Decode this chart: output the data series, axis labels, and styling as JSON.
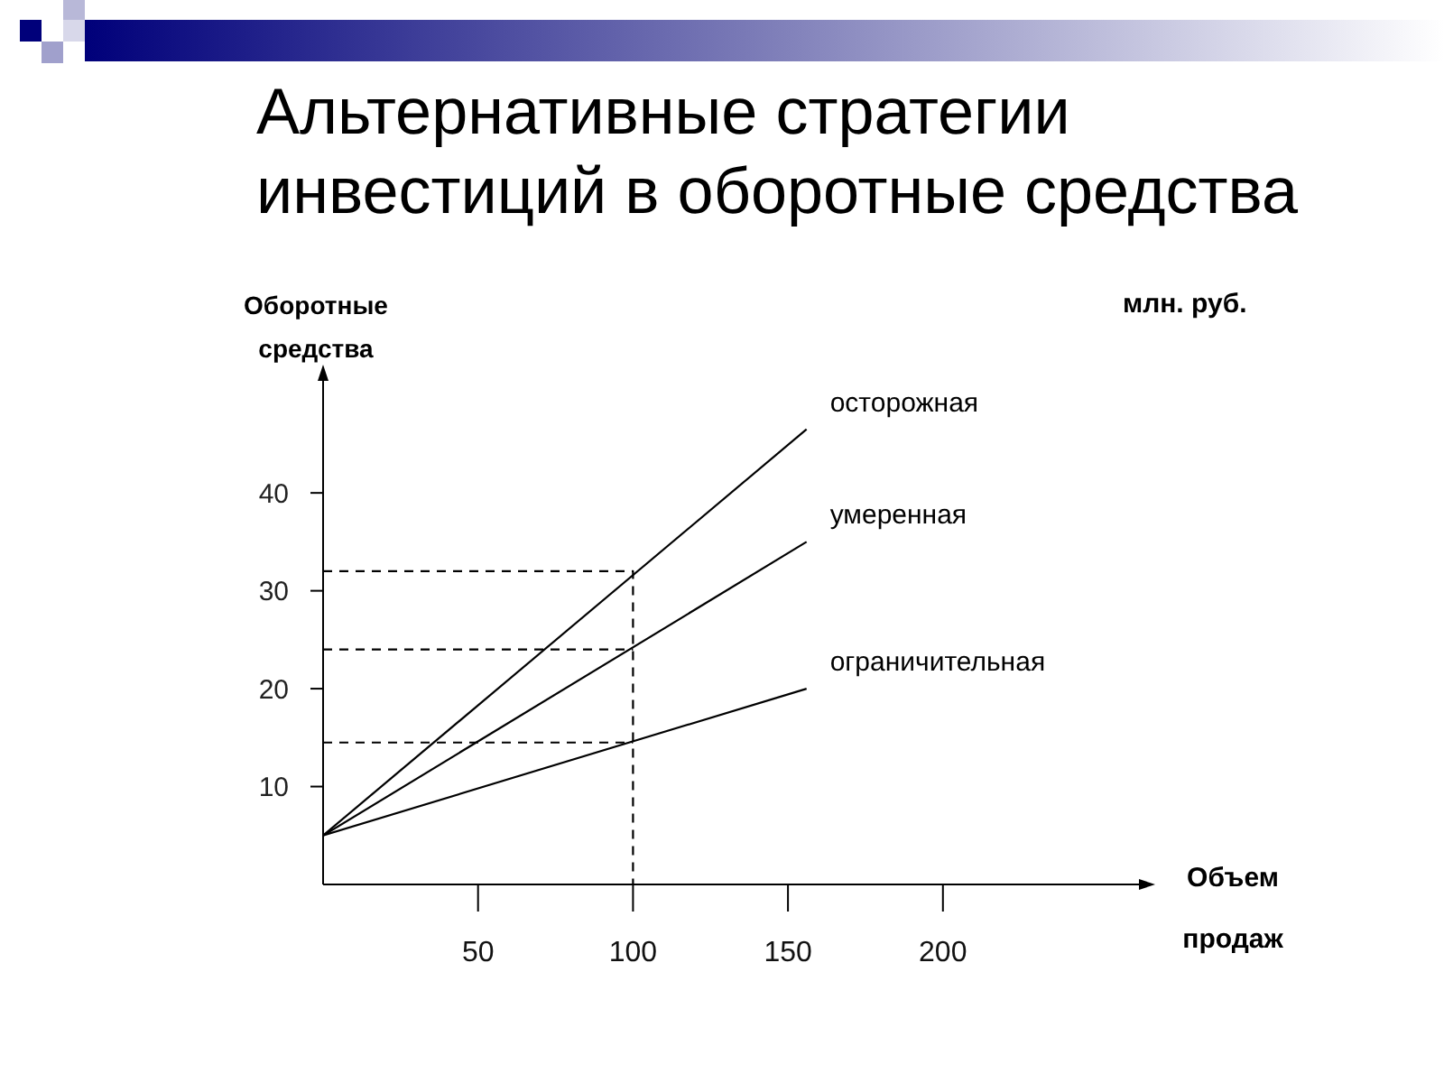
{
  "chart_data": {
    "type": "line",
    "title": "Альтернативные стратегии инвестиций в оборотные средства",
    "xlabel": "Объем продаж",
    "ylabel": "Оборотные средства",
    "annotations": [
      "млн. руб."
    ],
    "xlim": [
      0,
      265
    ],
    "xticks": [
      50,
      100,
      150,
      200
    ],
    "ylim": [
      0,
      52
    ],
    "yticks": [
      10,
      20,
      30,
      40
    ],
    "marker": "none",
    "line_style": "solid",
    "series": [
      {
        "name": "осторожная",
        "color": "#000000",
        "x": [
          0,
          156
        ],
        "values": [
          5,
          46.5
        ]
      },
      {
        "name": "умеренная",
        "color": "#000000",
        "x": [
          0,
          156
        ],
        "values": [
          5,
          35
        ]
      },
      {
        "name": "ограничительная",
        "color": "#000000",
        "x": [
          0,
          156
        ],
        "values": [
          5,
          20
        ]
      },
      {
        "color": "#000000",
        "line_style": "dashed",
        "x": [
          0,
          100,
          100
        ],
        "values": [
          32,
          32,
          0
        ]
      },
      {
        "color": "#000000",
        "line_style": "dashed",
        "x": [
          0,
          100
        ],
        "values": [
          24,
          24
        ]
      },
      {
        "color": "#000000",
        "line_style": "dashed",
        "x": [
          0,
          100
        ],
        "values": [
          14.5,
          14.5
        ]
      }
    ]
  }
}
